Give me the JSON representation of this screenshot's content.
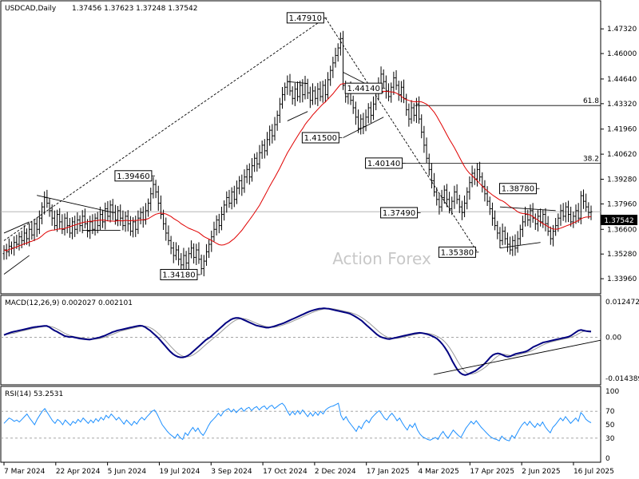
{
  "header": {
    "symbol": "USDCAD,Daily",
    "ohlc": "1.37456 1.37623 1.37248 1.37542"
  },
  "watermark": "Action Forex",
  "last_price_label": "1.37542",
  "colors": {
    "candle": "#000000",
    "ma": "#e00000",
    "macd": "#000080",
    "signal": "#999999",
    "rsi": "#1e90ff",
    "trend": "#000000",
    "last_price_bg": "#000000"
  },
  "chart_data": [
    {
      "type": "candlestick",
      "name": "price",
      "ylim": [
        1.3341,
        1.4801
      ],
      "price_ticks": [
        "1.47320",
        "1.46000",
        "1.44640",
        "1.43320",
        "1.41960",
        "1.40620",
        "1.39280",
        "1.37960",
        "1.36600",
        "1.35280",
        "1.33960"
      ],
      "x_ticks": [
        "7 Mar 2024",
        "22 Apr 2024",
        "5 Jun 2024",
        "19 Jul 2024",
        "3 Sep 2024",
        "17 Oct 2024",
        "2 Dec 2024",
        "17 Jan 2025",
        "4 Mar 2025",
        "17 Apr 2025",
        "2 Jun 2025",
        "16 Jul 2025"
      ],
      "closes": [
        1.355,
        1.354,
        1.357,
        1.356,
        1.359,
        1.358,
        1.362,
        1.36,
        1.364,
        1.361,
        1.366,
        1.363,
        1.369,
        1.366,
        1.372,
        1.378,
        1.383,
        1.38,
        1.376,
        1.372,
        1.368,
        1.374,
        1.37,
        1.366,
        1.372,
        1.368,
        1.364,
        1.37,
        1.366,
        1.371,
        1.368,
        1.373,
        1.369,
        1.365,
        1.37,
        1.366,
        1.372,
        1.368,
        1.374,
        1.37,
        1.377,
        1.373,
        1.379,
        1.375,
        1.371,
        1.376,
        1.372,
        1.368,
        1.373,
        1.369,
        1.365,
        1.37,
        1.366,
        1.372,
        1.375,
        1.371,
        1.376,
        1.38,
        1.385,
        1.39,
        1.386,
        1.38,
        1.374,
        1.369,
        1.364,
        1.36,
        1.356,
        1.352,
        1.355,
        1.35,
        1.347,
        1.352,
        1.348,
        1.353,
        1.356,
        1.351,
        1.355,
        1.35,
        1.345,
        1.349,
        1.354,
        1.358,
        1.362,
        1.366,
        1.371,
        1.368,
        1.374,
        1.379,
        1.383,
        1.38,
        1.386,
        1.382,
        1.388,
        1.392,
        1.388,
        1.394,
        1.398,
        1.394,
        1.4,
        1.404,
        1.401,
        1.407,
        1.411,
        1.408,
        1.414,
        1.419,
        1.416,
        1.422,
        1.427,
        1.433,
        1.438,
        1.442,
        1.445,
        1.44,
        1.436,
        1.441,
        1.437,
        1.443,
        1.438,
        1.444,
        1.439,
        1.435,
        1.44,
        1.436,
        1.441,
        1.437,
        1.443,
        1.438,
        1.446,
        1.451,
        1.455,
        1.459,
        1.463,
        1.468,
        1.443,
        1.437,
        1.441,
        1.435,
        1.431,
        1.426,
        1.42,
        1.425,
        1.421,
        1.426,
        1.431,
        1.427,
        1.433,
        1.439,
        1.444,
        1.449,
        1.445,
        1.44,
        1.437,
        1.442,
        1.447,
        1.443,
        1.438,
        1.442,
        1.436,
        1.43,
        1.425,
        1.431,
        1.427,
        1.433,
        1.425,
        1.418,
        1.411,
        1.404,
        1.398,
        1.392,
        1.386,
        1.382,
        1.378,
        1.383,
        1.387,
        1.382,
        1.377,
        1.381,
        1.386,
        1.382,
        1.378,
        1.375,
        1.38,
        1.386,
        1.391,
        1.396,
        1.393,
        1.398,
        1.394,
        1.389,
        1.385,
        1.381,
        1.377,
        1.372,
        1.368,
        1.364,
        1.36,
        1.365,
        1.361,
        1.358,
        1.355,
        1.36,
        1.356,
        1.361,
        1.366,
        1.37,
        1.374,
        1.371,
        1.376,
        1.372,
        1.369,
        1.373,
        1.37,
        1.374,
        1.369,
        1.365,
        1.361,
        1.365,
        1.368,
        1.372,
        1.376,
        1.373,
        1.378,
        1.374,
        1.37,
        1.373,
        1.376,
        1.372,
        1.384,
        1.381,
        1.378,
        1.375,
        1.3754
      ]
    },
    {
      "type": "line",
      "name": "MACD(12,26,9) 0.002027 0.002101",
      "ylim": [
        -0.014389,
        0.012472
      ],
      "y_ticks": [
        "0.012472",
        "0.00",
        "-0.014389"
      ],
      "macd": [
        0.0008,
        0.0012,
        0.0015,
        0.0018,
        0.002,
        0.0022,
        0.0024,
        0.0026,
        0.0028,
        0.003,
        0.0032,
        0.0034,
        0.0036,
        0.0037,
        0.0038,
        0.0039,
        0.004,
        0.004,
        0.0036,
        0.003,
        0.0024,
        0.002,
        0.0015,
        0.001,
        0.0005,
        0.0003,
        0.0001,
        0.0002,
        0.0,
        -0.0002,
        -0.0004,
        -0.0005,
        -0.0006,
        -0.0007,
        -0.0008,
        -0.0006,
        -0.0004,
        -0.0002,
        0.0,
        0.0003,
        0.0006,
        0.001,
        0.0014,
        0.0018,
        0.0021,
        0.0024,
        0.0026,
        0.0028,
        0.003,
        0.0032,
        0.0034,
        0.0036,
        0.0038,
        0.004,
        0.0041,
        0.004,
        0.0036,
        0.003,
        0.0024,
        0.0016,
        0.0008,
        0.0,
        -0.001,
        -0.002,
        -0.003,
        -0.004,
        -0.005,
        -0.0058,
        -0.0064,
        -0.0068,
        -0.007,
        -0.007,
        -0.0068,
        -0.0064,
        -0.0058,
        -0.005,
        -0.0042,
        -0.0034,
        -0.0026,
        -0.0018,
        -0.001,
        -0.0004,
        0.0002,
        0.001,
        0.0018,
        0.0026,
        0.0034,
        0.0042,
        0.005,
        0.0056,
        0.0062,
        0.0066,
        0.0068,
        0.0068,
        0.0066,
        0.0062,
        0.0058,
        0.0054,
        0.005,
        0.0046,
        0.0042,
        0.004,
        0.0038,
        0.0036,
        0.0034,
        0.0034,
        0.0036,
        0.0038,
        0.0041,
        0.0044,
        0.0047,
        0.005,
        0.0054,
        0.0058,
        0.0062,
        0.0066,
        0.007,
        0.0074,
        0.0078,
        0.0082,
        0.0086,
        0.009,
        0.0093,
        0.0096,
        0.0098,
        0.01,
        0.0101,
        0.0102,
        0.0101,
        0.01,
        0.0098,
        0.0096,
        0.0094,
        0.0092,
        0.009,
        0.0088,
        0.0086,
        0.0084,
        0.008,
        0.0075,
        0.007,
        0.0064,
        0.0058,
        0.005,
        0.0042,
        0.0034,
        0.0026,
        0.0018,
        0.001,
        0.0004,
        0.0,
        -0.0003,
        -0.0005,
        -0.0006,
        -0.0004,
        -0.0002,
        0.0,
        0.0002,
        0.0004,
        0.0006,
        0.0008,
        0.001,
        0.0012,
        0.0014,
        0.0015,
        0.0016,
        0.0015,
        0.0013,
        0.0011,
        0.0008,
        0.0004,
        0.0,
        -0.0006,
        -0.0014,
        -0.0024,
        -0.0036,
        -0.005,
        -0.0066,
        -0.0084,
        -0.01,
        -0.0114,
        -0.0124,
        -0.013,
        -0.0132,
        -0.013,
        -0.0126,
        -0.0122,
        -0.0118,
        -0.0112,
        -0.0105,
        -0.0098,
        -0.009,
        -0.008,
        -0.007,
        -0.0062,
        -0.0058,
        -0.0056,
        -0.0058,
        -0.0062,
        -0.0066,
        -0.0068,
        -0.0066,
        -0.0062,
        -0.0058,
        -0.0056,
        -0.0054,
        -0.0052,
        -0.005,
        -0.0046,
        -0.004,
        -0.0034,
        -0.003,
        -0.0026,
        -0.0022,
        -0.0018,
        -0.0016,
        -0.0014,
        -0.0012,
        -0.001,
        -0.0008,
        -0.0006,
        -0.0004,
        -0.0002,
        0.0,
        0.0002,
        0.0006,
        0.0012,
        0.0018,
        0.0024,
        0.0026,
        0.0024,
        0.0022,
        0.0021,
        0.002
      ],
      "signal_lag": 4,
      "trendline": [
        [
          0.72,
          -0.013
        ],
        [
          1.0,
          -0.001
        ]
      ]
    },
    {
      "type": "line",
      "name": "RSI(14) 53.2531",
      "ylim": [
        0,
        100
      ],
      "y_ticks": [
        "100",
        "70",
        "50",
        "30",
        "0"
      ],
      "guides": [
        70,
        30
      ],
      "values": [
        52,
        56,
        60,
        58,
        55,
        57,
        54,
        58,
        62,
        66,
        60,
        55,
        50,
        58,
        64,
        70,
        74,
        68,
        62,
        56,
        52,
        58,
        55,
        50,
        57,
        53,
        49,
        55,
        52,
        58,
        54,
        60,
        56,
        52,
        57,
        53,
        59,
        55,
        61,
        57,
        64,
        60,
        66,
        62,
        57,
        61,
        56,
        51,
        57,
        53,
        49,
        55,
        51,
        57,
        61,
        57,
        62,
        66,
        70,
        72,
        66,
        58,
        50,
        45,
        40,
        36,
        33,
        30,
        36,
        31,
        28,
        38,
        34,
        41,
        46,
        40,
        45,
        38,
        34,
        40,
        48,
        54,
        58,
        62,
        67,
        63,
        69,
        72,
        74,
        69,
        73,
        68,
        72,
        75,
        70,
        74,
        76,
        71,
        75,
        77,
        72,
        76,
        78,
        73,
        77,
        79,
        74,
        77,
        80,
        82,
        78,
        70,
        64,
        70,
        65,
        71,
        66,
        72,
        67,
        62,
        68,
        63,
        69,
        64,
        70,
        66,
        72,
        75,
        77,
        78,
        80,
        82,
        64,
        57,
        62,
        55,
        50,
        45,
        40,
        48,
        44,
        52,
        57,
        53,
        60,
        64,
        68,
        71,
        66,
        60,
        57,
        63,
        67,
        62,
        56,
        60,
        53,
        47,
        42,
        50,
        46,
        52,
        42,
        36,
        32,
        30,
        28,
        27,
        29,
        31,
        28,
        35,
        40,
        34,
        30,
        36,
        42,
        38,
        34,
        31,
        38,
        45,
        50,
        55,
        51,
        56,
        51,
        46,
        42,
        38,
        34,
        31,
        29,
        28,
        26,
        33,
        29,
        27,
        26,
        34,
        30,
        37,
        44,
        50,
        54,
        49,
        55,
        50,
        46,
        52,
        48,
        54,
        47,
        42,
        38,
        46,
        50,
        55,
        60,
        56,
        62,
        57,
        52,
        56,
        60,
        55,
        68,
        64,
        58,
        55,
        53
      ]
    }
  ],
  "annotations": [
    {
      "text": "1.47910",
      "level": 1.4791,
      "i": 127
    },
    {
      "text": "1.39460",
      "level": 1.3946,
      "i": 59
    },
    {
      "text": "1.34180",
      "level": 1.3418,
      "i": 77
    },
    {
      "text": "1.41500",
      "level": 1.415,
      "i": 133
    },
    {
      "text": "1.44140",
      "level": 1.4414,
      "i": 150
    },
    {
      "text": "1.40140",
      "level": 1.4014,
      "i": 158
    },
    {
      "text": "1.37490",
      "level": 1.3749,
      "i": 164
    },
    {
      "text": "1.35380",
      "level": 1.3538,
      "i": 187
    },
    {
      "text": "1.38780",
      "level": 1.3878,
      "i": 211
    }
  ],
  "fibs": [
    {
      "label": "61.8",
      "level": 1.4322,
      "from": 0.7
    },
    {
      "label": "38.2",
      "level": 1.4014,
      "from": 0.63
    }
  ]
}
